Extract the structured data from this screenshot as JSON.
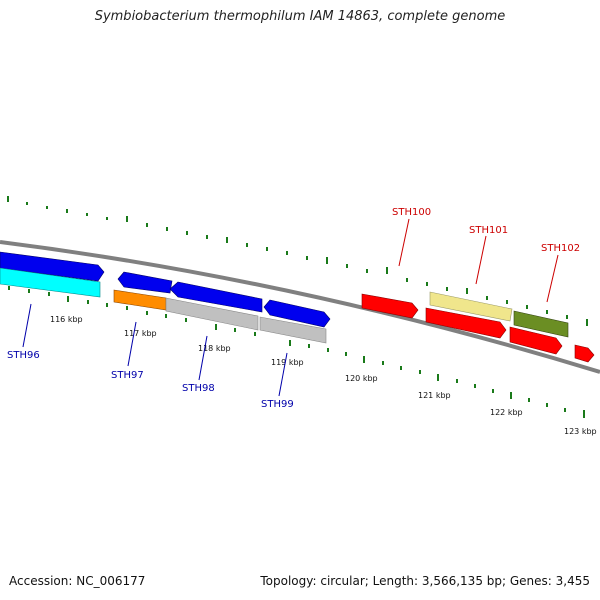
{
  "title": "Symbiobacterium thermophilum IAM 14863, complete genome",
  "footer": {
    "accession": "Accession: NC_006177",
    "summary": "Topology: circular; Length: 3,566,135 bp; Genes: 3,455"
  },
  "scale_labels": [
    "116 kbp",
    "117 kbp",
    "118 kbp",
    "119 kbp",
    "120 kbp",
    "121 kbp",
    "122 kbp",
    "123 kbp"
  ],
  "gene_labels": [
    "STH96",
    "STH97",
    "STH98",
    "STH99",
    "STH100",
    "STH101",
    "STH102"
  ],
  "colors": {
    "blue_label": "#0000aa",
    "red_label": "#cc0000",
    "tick": "#1a7a1a",
    "backbone": "#808080",
    "blue_gene": "#0000ee",
    "cyan_gene": "#00ffff",
    "orange_gene": "#ff8c00",
    "grey_gene": "#c0c0c0",
    "red_gene": "#ff0000",
    "khaki_gene": "#f0e68c",
    "olive_gene": "#6b8e23"
  }
}
